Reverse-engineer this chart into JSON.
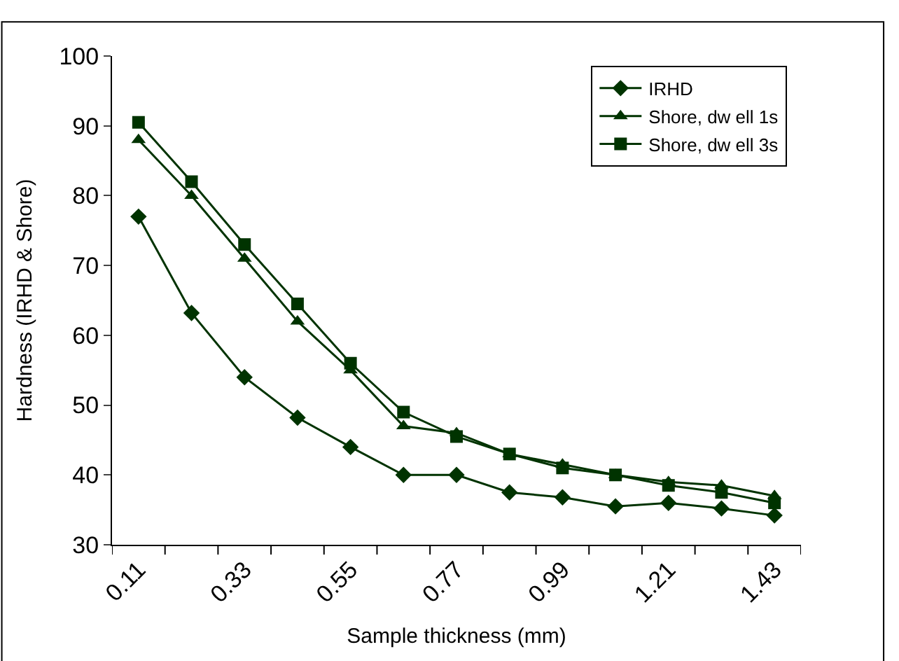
{
  "chart_data": {
    "type": "line",
    "xlabel": "Sample thickness (mm)",
    "ylabel": "Hardness (IRHD & Shore)",
    "categories": [
      "0.11",
      null,
      "0.33",
      null,
      "0.55",
      null,
      "0.77",
      null,
      "0.99",
      null,
      "1.21",
      null,
      "1.43"
    ],
    "series": [
      {
        "name": "IRHD",
        "color": "#003300",
        "marker": "diamond",
        "values": [
          77,
          63.2,
          54,
          48.2,
          44,
          40,
          40,
          37.5,
          36.8,
          35.5,
          36,
          35.2,
          34.2
        ]
      },
      {
        "name": "Shore, dw ell 1s",
        "color": "#003300",
        "marker": "triangle",
        "values": [
          88,
          80,
          71,
          62,
          55,
          47,
          46,
          43,
          41.5,
          40,
          39,
          38.5,
          37
        ]
      },
      {
        "name": "Shore, dw ell 3s",
        "color": "#003300",
        "marker": "square",
        "values": [
          90.5,
          82,
          73,
          64.5,
          56,
          49,
          45.5,
          43,
          41,
          40,
          38.5,
          37.5,
          36
        ]
      }
    ],
    "ylim": [
      30,
      100
    ],
    "yticks": [
      30,
      40,
      50,
      60,
      70,
      80,
      90,
      100
    ],
    "legend": "top right",
    "line_style": "solid"
  }
}
